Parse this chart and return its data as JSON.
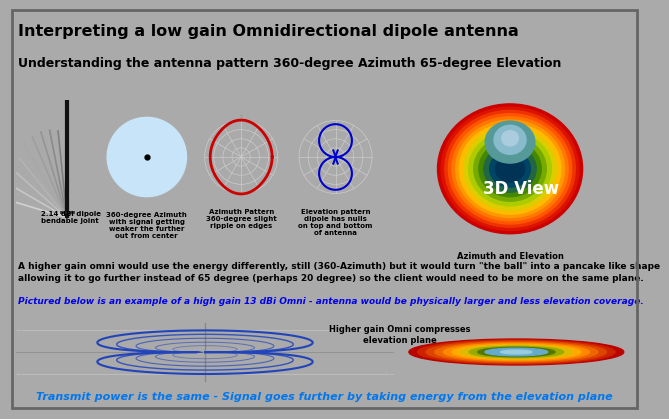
{
  "bg_color": "#aaaaaa",
  "panel_bg": "#d0d0d0",
  "white_bg": "#ffffff",
  "title1": "Interpreting a low gain Omnidirectional dipole antenna",
  "title2": "Understanding the antenna pattern 360-degree Azimuth 65-degree Elevation",
  "title1_size": 11.5,
  "title2_size": 9.0,
  "separator_color": "#00ccff",
  "body_text1": "A higher gain omni would use the energy differently, still (360-Azimuth) but it would turn \"the ball\" into a pancake like shape\nallowing it to go further instead of 65 degree (perhaps 20 degree) so the client would need to be more on the same plane.",
  "body_text2": "Pictured below is an example of a high gain 13 dBi Omni - antenna would be physically larger and less elevation coverage.",
  "body_text2_color": "#0000ee",
  "bottom_text": "Transmit power is the same - Signal goes further by taking energy from the elevation plane",
  "bottom_text_color": "#0077ee",
  "label1": "2.14 dBi dipole\nbendable joint",
  "label2": "360-degree Azimuth\nwith signal getting\nweaker the further\nout from center",
  "label3": "Azimuth Pattern\n360-degree slight\nripple on edges",
  "label4": "Elevation pattern\ndipole has nulls\non top and bottom\nof antenna",
  "label5": "Azimuth and Elevation",
  "label6": "Higher gain Omni compresses\nelevation plane",
  "label3d": "3D View"
}
